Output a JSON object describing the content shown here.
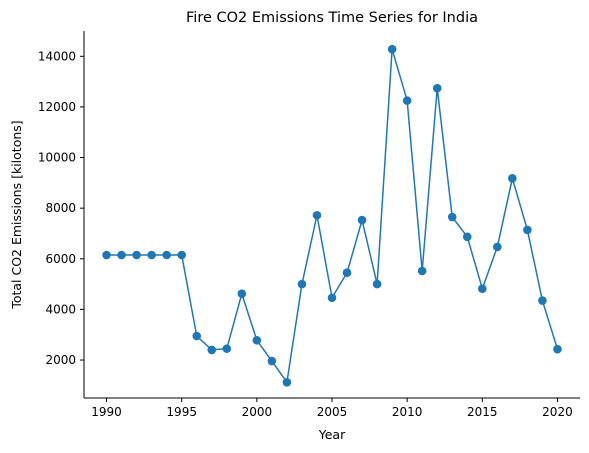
{
  "chart_data": {
    "type": "line",
    "title": "Fire CO2 Emissions Time Series for India",
    "xlabel": "Year",
    "ylabel": "Total CO2 Emissions [kilotons]",
    "xlim": [
      1988.5,
      2021.5
    ],
    "ylim": [
      500,
      15000
    ],
    "x_ticks": [
      1990,
      1995,
      2000,
      2005,
      2010,
      2015,
      2020
    ],
    "y_ticks": [
      2000,
      4000,
      6000,
      8000,
      10000,
      12000,
      14000
    ],
    "grid": false,
    "color": "#1f77b4",
    "series": [
      {
        "x": [
          1990,
          1991,
          1992,
          1993,
          1994,
          1995,
          1996,
          1997,
          1998,
          1999,
          2000,
          2001,
          2002,
          2003,
          2004,
          2005,
          2006,
          2007,
          2008,
          2009,
          2010,
          2011,
          2012,
          2013,
          2014,
          2015,
          2016,
          2017,
          2018,
          2019,
          2020
        ],
        "values": [
          6150,
          6150,
          6150,
          6150,
          6150,
          6150,
          2950,
          2400,
          2450,
          4620,
          2780,
          1960,
          1120,
          5000,
          7720,
          4460,
          5450,
          7530,
          5000,
          14280,
          12250,
          5520,
          12740,
          7650,
          6870,
          4820,
          6470,
          9180,
          7140,
          4350,
          2430
        ]
      }
    ]
  }
}
